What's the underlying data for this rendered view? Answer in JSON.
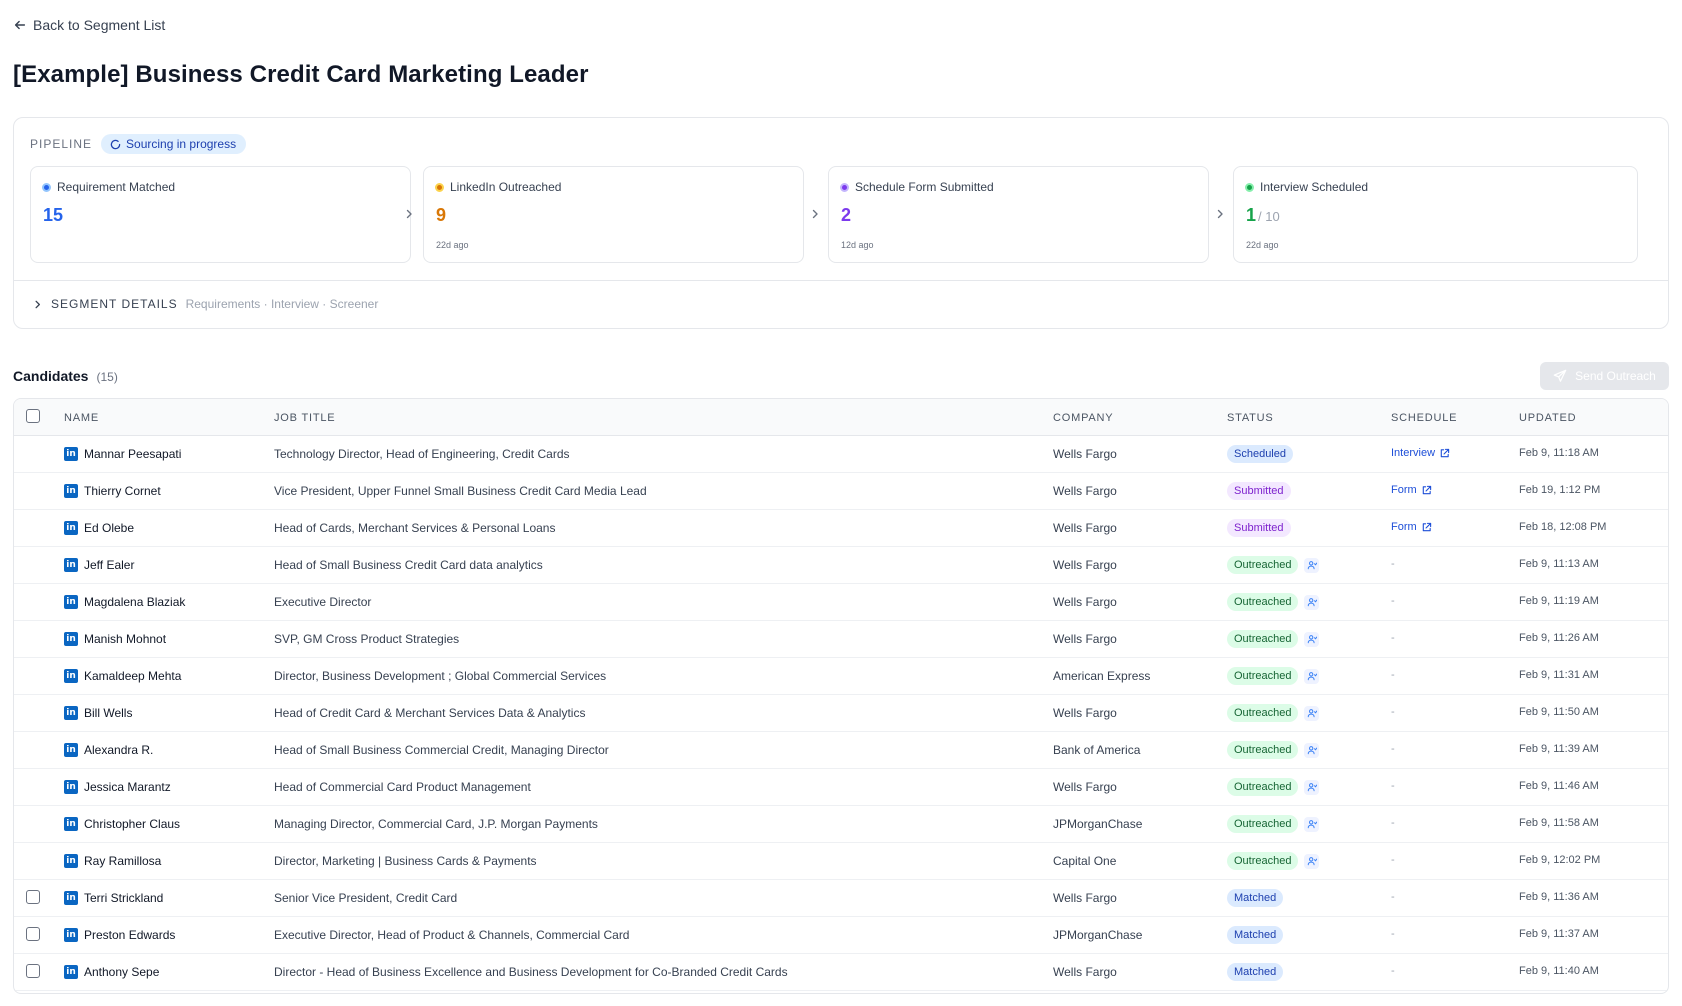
{
  "nav": {
    "back_label": "Back to Segment List"
  },
  "page": {
    "title": "[Example] Business Credit Card Marketing Leader"
  },
  "pipeline": {
    "label": "PIPELINE",
    "status": "Sourcing in progress",
    "stages": [
      {
        "label": "Requirement Matched",
        "value": "15",
        "total": "",
        "ago": "",
        "color": "#2563eb"
      },
      {
        "label": "LinkedIn Outreached",
        "value": "9",
        "total": "",
        "ago": "22d ago",
        "color": "#d97706"
      },
      {
        "label": "Schedule Form Submitted",
        "value": "2",
        "total": "",
        "ago": "12d ago",
        "color": "#7c3aed"
      },
      {
        "label": "Interview Scheduled",
        "value": "1",
        "total": "/ 10",
        "ago": "22d ago",
        "color": "#16a34a"
      }
    ],
    "segment_details": {
      "title": "SEGMENT DETAILS",
      "subtitle": "Requirements · Interview · Screener"
    }
  },
  "candidates": {
    "title": "Candidates",
    "count": "(15)",
    "send_outreach_label": "Send Outreach",
    "columns": {
      "name": "NAME",
      "job_title": "JOB TITLE",
      "company": "COMPANY",
      "status": "STATUS",
      "schedule": "SCHEDULE",
      "updated": "UPDATED"
    },
    "rows": [
      {
        "name": "Mannar Peesapati",
        "job_title": "Technology Director, Head of Engineering, Credit Cards",
        "company": "Wells Fargo",
        "status": "Scheduled",
        "status_kind": "scheduled",
        "schedule": "Interview",
        "updated": "Feb 9, 11:18 AM",
        "checkbox": false
      },
      {
        "name": "Thierry Cornet",
        "job_title": "Vice President, Upper Funnel Small Business Credit Card Media Lead",
        "company": "Wells Fargo",
        "status": "Submitted",
        "status_kind": "submitted",
        "schedule": "Form",
        "updated": "Feb 19, 1:12 PM",
        "checkbox": false
      },
      {
        "name": "Ed Olebe",
        "job_title": "Head of Cards, Merchant Services & Personal Loans",
        "company": "Wells Fargo",
        "status": "Submitted",
        "status_kind": "submitted",
        "schedule": "Form",
        "updated": "Feb 18, 12:08 PM",
        "checkbox": false
      },
      {
        "name": "Jeff Ealer",
        "job_title": "Head of Small Business Credit Card data analytics",
        "company": "Wells Fargo",
        "status": "Outreached",
        "status_kind": "outreached",
        "schedule": "-",
        "updated": "Feb 9, 11:13 AM",
        "checkbox": false
      },
      {
        "name": "Magdalena Blaziak",
        "job_title": "Executive Director",
        "company": "Wells Fargo",
        "status": "Outreached",
        "status_kind": "outreached",
        "schedule": "-",
        "updated": "Feb 9, 11:19 AM",
        "checkbox": false
      },
      {
        "name": "Manish Mohnot",
        "job_title": "SVP, GM Cross Product Strategies",
        "company": "Wells Fargo",
        "status": "Outreached",
        "status_kind": "outreached",
        "schedule": "-",
        "updated": "Feb 9, 11:26 AM",
        "checkbox": false
      },
      {
        "name": "Kamaldeep Mehta",
        "job_title": "Director, Business Development ; Global Commercial Services",
        "company": "American Express",
        "status": "Outreached",
        "status_kind": "outreached",
        "schedule": "-",
        "updated": "Feb 9, 11:31 AM",
        "checkbox": false
      },
      {
        "name": "Bill Wells",
        "job_title": "Head of Credit Card & Merchant Services Data & Analytics",
        "company": "Wells Fargo",
        "status": "Outreached",
        "status_kind": "outreached",
        "schedule": "-",
        "updated": "Feb 9, 11:50 AM",
        "checkbox": false
      },
      {
        "name": "Alexandra R.",
        "job_title": "Head of Small Business Commercial Credit, Managing Director",
        "company": "Bank of America",
        "status": "Outreached",
        "status_kind": "outreached",
        "schedule": "-",
        "updated": "Feb 9, 11:39 AM",
        "checkbox": false
      },
      {
        "name": "Jessica Marantz",
        "job_title": "Head of Commercial Card Product Management",
        "company": "Wells Fargo",
        "status": "Outreached",
        "status_kind": "outreached",
        "schedule": "-",
        "updated": "Feb 9, 11:46 AM",
        "checkbox": false
      },
      {
        "name": "Christopher Claus",
        "job_title": "Managing Director, Commercial Card, J.P. Morgan Payments",
        "company": "JPMorganChase",
        "status": "Outreached",
        "status_kind": "outreached",
        "schedule": "-",
        "updated": "Feb 9, 11:58 AM",
        "checkbox": false
      },
      {
        "name": "Ray Ramillosa",
        "job_title": "Director, Marketing | Business Cards & Payments",
        "company": "Capital One",
        "status": "Outreached",
        "status_kind": "outreached",
        "schedule": "-",
        "updated": "Feb 9, 12:02 PM",
        "checkbox": false
      },
      {
        "name": "Terri Strickland",
        "job_title": "Senior Vice President, Credit Card",
        "company": "Wells Fargo",
        "status": "Matched",
        "status_kind": "matched",
        "schedule": "-",
        "updated": "Feb 9, 11:36 AM",
        "checkbox": true
      },
      {
        "name": "Preston Edwards",
        "job_title": "Executive Director, Head of Product & Channels, Commercial Card",
        "company": "JPMorganChase",
        "status": "Matched",
        "status_kind": "matched",
        "schedule": "-",
        "updated": "Feb 9, 11:37 AM",
        "checkbox": true
      },
      {
        "name": "Anthony Sepe",
        "job_title": "Director - Head of Business Excellence and Business Development for Co-Branded Credit Cards",
        "company": "Wells Fargo",
        "status": "Matched",
        "status_kind": "matched",
        "schedule": "-",
        "updated": "Feb 9, 11:40 AM",
        "checkbox": true
      }
    ]
  }
}
